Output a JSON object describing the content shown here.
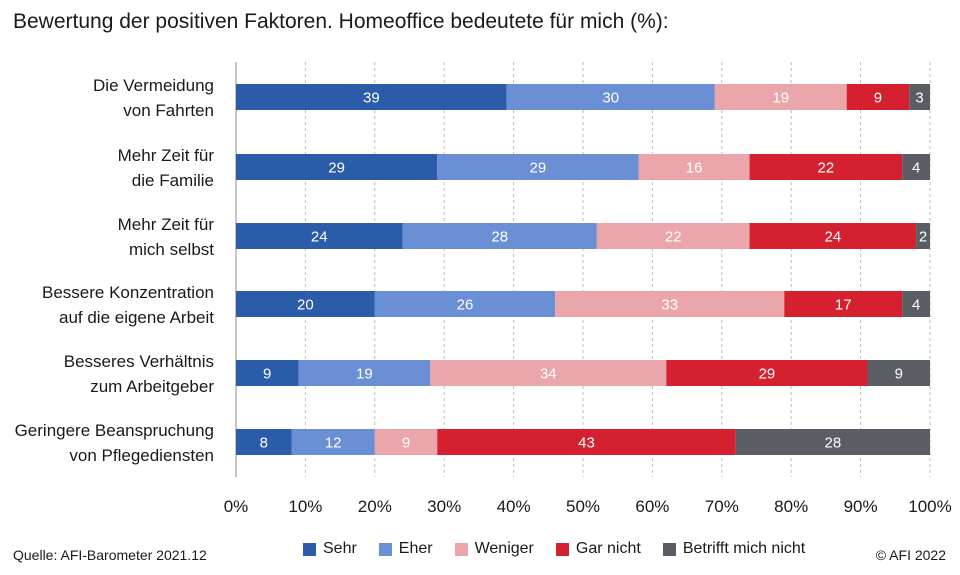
{
  "title": "Bewertung der positiven Faktoren. Homeoffice bedeutete für mich (%):",
  "source": "Quelle: AFI-Barometer 2021.12",
  "copyright": "© AFI 2022",
  "chart_data": {
    "type": "bar",
    "orientation": "horizontal",
    "stacked": true,
    "title": "Bewertung der positiven Faktoren. Homeoffice bedeutete für mich (%):",
    "categories": [
      [
        "Die Vermeidung",
        "von Fahrten"
      ],
      [
        "Mehr Zeit für",
        "die Familie"
      ],
      [
        "Mehr Zeit für",
        "mich selbst"
      ],
      [
        "Bessere Konzentration",
        "auf die eigene Arbeit"
      ],
      [
        "Besseres Verhältnis",
        "zum Arbeitgeber"
      ],
      [
        "Geringere Beanspruchung",
        "von Pflegediensten"
      ]
    ],
    "series": [
      {
        "name": "Sehr",
        "color": "#2a5caa",
        "values": [
          39,
          29,
          24,
          20,
          9,
          8
        ]
      },
      {
        "name": "Eher",
        "color": "#6b8fd4",
        "values": [
          30,
          29,
          28,
          26,
          19,
          12
        ]
      },
      {
        "name": "Weniger",
        "color": "#eaa6aa",
        "values": [
          19,
          16,
          22,
          33,
          34,
          9
        ]
      },
      {
        "name": "Gar nicht",
        "color": "#d4202f",
        "values": [
          9,
          22,
          24,
          17,
          29,
          43
        ]
      },
      {
        "name": "Betrifft mich nicht",
        "color": "#5a5d63",
        "values": [
          3,
          4,
          2,
          4,
          9,
          28
        ]
      }
    ],
    "xlim": [
      0,
      100
    ],
    "xticks": [
      "0%",
      "10%",
      "20%",
      "30%",
      "40%",
      "50%",
      "60%",
      "70%",
      "80%",
      "90%",
      "100%"
    ],
    "grid": "vertical dashed",
    "legend": "bottom"
  }
}
